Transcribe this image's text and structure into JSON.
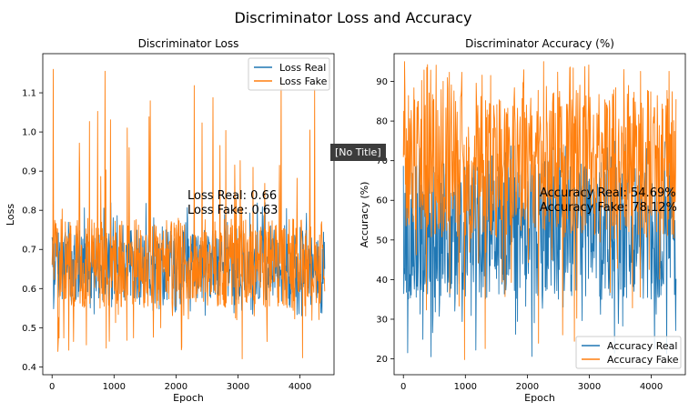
{
  "figure_title": "Discriminator Loss and Accuracy",
  "tooltip_text": "[No Title]",
  "colors": {
    "real": "#1f77b4",
    "fake": "#ff7f0e"
  },
  "chart_data": [
    {
      "type": "line",
      "title": "Discriminator Loss",
      "xlabel": "Epoch",
      "ylabel": "Loss",
      "xlim": [
        -150,
        4550
      ],
      "ylim": [
        0.38,
        1.2
      ],
      "xticks": [
        0,
        1000,
        2000,
        3000,
        4000
      ],
      "xtick_labels": [
        "0",
        "1000",
        "2000",
        "3000",
        "4000"
      ],
      "yticks": [
        0.4,
        0.5,
        0.6,
        0.7,
        0.8,
        0.9,
        1.0,
        1.1
      ],
      "ytick_labels": [
        "0.4",
        "0.5",
        "0.6",
        "0.7",
        "0.8",
        "0.9",
        "1.0",
        "1.1"
      ],
      "grid": false,
      "legend_position": "top-right",
      "series": [
        {
          "name": "Loss Real",
          "color": "#1f77b4",
          "x_range": [
            0,
            4400
          ],
          "typical_range": [
            0.57,
            0.75
          ],
          "extreme_range": [
            0.53,
            0.82
          ]
        },
        {
          "name": "Loss Fake",
          "color": "#ff7f0e",
          "x_range": [
            0,
            4400
          ],
          "typical_range": [
            0.55,
            0.78
          ],
          "extreme_range": [
            0.42,
            1.16
          ]
        }
      ],
      "annotations": [
        "Loss Real: 0.66",
        "Loss Fake: 0.63"
      ]
    },
    {
      "type": "line",
      "title": "Discriminator Accuracy (%)",
      "xlabel": "Epoch",
      "ylabel": "Accuracy (%)",
      "xlim": [
        -150,
        4550
      ],
      "ylim": [
        16,
        97
      ],
      "xticks": [
        0,
        1000,
        2000,
        3000,
        4000
      ],
      "xtick_labels": [
        "0",
        "1000",
        "2000",
        "3000",
        "4000"
      ],
      "yticks": [
        20,
        30,
        40,
        50,
        60,
        70,
        80,
        90
      ],
      "ytick_labels": [
        "20",
        "30",
        "40",
        "50",
        "60",
        "70",
        "80",
        "90"
      ],
      "grid": false,
      "legend_position": "bottom-right",
      "series": [
        {
          "name": "Accuracy Real",
          "color": "#1f77b4",
          "x_range": [
            0,
            4400
          ],
          "typical_range": [
            35,
            70
          ],
          "extreme_range": [
            20,
            75
          ]
        },
        {
          "name": "Accuracy Fake",
          "color": "#ff7f0e",
          "x_range": [
            0,
            4400
          ],
          "typical_range": [
            50,
            88
          ],
          "extreme_range": [
            19,
            95
          ]
        }
      ],
      "annotations": [
        "Accuracy Real: 54.69%",
        "Accuracy Fake: 78.12%"
      ]
    }
  ]
}
